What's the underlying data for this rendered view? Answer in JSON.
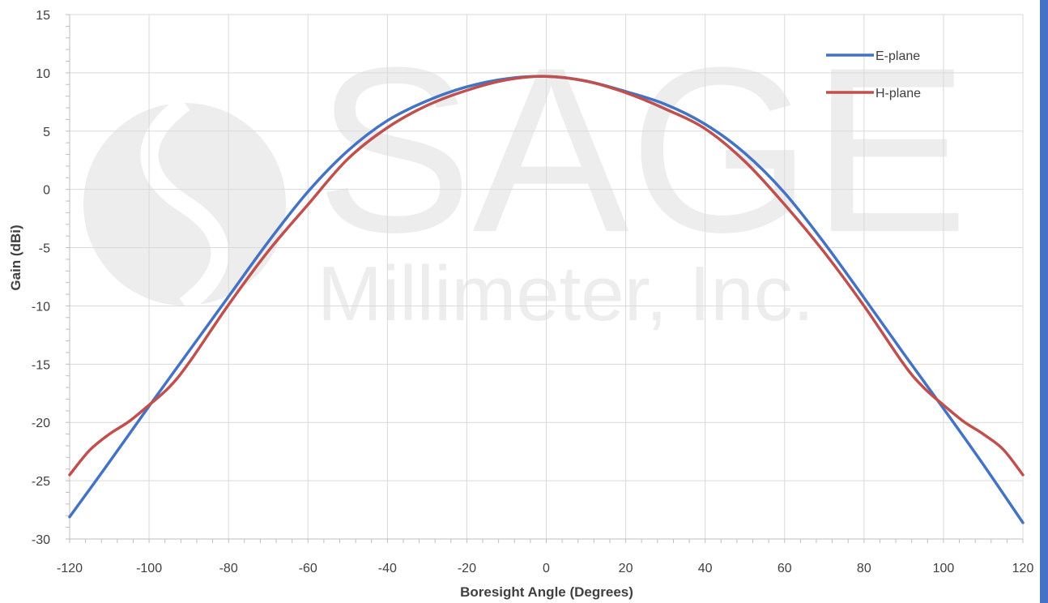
{
  "watermark": {
    "line1": "SAGE",
    "line2": "Millimeter, Inc."
  },
  "colors": {
    "e_plane": "#4472c4",
    "h_plane": "#c0504d",
    "grid": "#d9d9d9",
    "axis": "#bfbfbf",
    "side_bar": "#4472c4"
  },
  "chart_data": {
    "type": "line",
    "title": "",
    "xlabel": "Boresight Angle (Degrees)",
    "ylabel": "Gain (dBi)",
    "xlim": [
      -120,
      120
    ],
    "ylim": [
      -30,
      15
    ],
    "xticks": [
      -120,
      -100,
      -80,
      -60,
      -40,
      -20,
      0,
      20,
      40,
      60,
      80,
      100,
      120
    ],
    "yticks": [
      15,
      10,
      5,
      0,
      -5,
      -10,
      -15,
      -20,
      -25,
      -30
    ],
    "grid": true,
    "legend_position": "top-right",
    "series": [
      {
        "name": "E-plane",
        "x": [
          -120,
          -110,
          -100,
          -90,
          -80,
          -70,
          -60,
          -50,
          -40,
          -30,
          -20,
          -10,
          0,
          10,
          20,
          30,
          40,
          50,
          60,
          70,
          80,
          90,
          100,
          110,
          120
        ],
        "y": [
          -28.1,
          -23.4,
          -18.6,
          -13.9,
          -9.2,
          -4.5,
          -0.2,
          3.3,
          5.9,
          7.6,
          8.8,
          9.5,
          9.7,
          9.3,
          8.4,
          7.3,
          5.6,
          3.1,
          -0.3,
          -4.6,
          -9.3,
          -14.1,
          -18.8,
          -23.6,
          -28.6
        ]
      },
      {
        "name": "H-plane",
        "x": [
          -120,
          -115,
          -110,
          -105,
          -100,
          -95,
          -90,
          -80,
          -70,
          -60,
          -50,
          -40,
          -30,
          -20,
          -10,
          0,
          10,
          20,
          30,
          40,
          50,
          60,
          70,
          80,
          90,
          95,
          100,
          105,
          110,
          115,
          120
        ],
        "y": [
          -24.5,
          -22.4,
          -21.0,
          -19.9,
          -18.5,
          -17.0,
          -14.9,
          -9.9,
          -5.3,
          -1.3,
          2.6,
          5.3,
          7.2,
          8.5,
          9.4,
          9.7,
          9.3,
          8.3,
          6.9,
          5.2,
          2.4,
          -1.3,
          -5.4,
          -10.0,
          -15.0,
          -17.0,
          -18.5,
          -19.9,
          -21.0,
          -22.3,
          -24.5
        ]
      }
    ]
  }
}
